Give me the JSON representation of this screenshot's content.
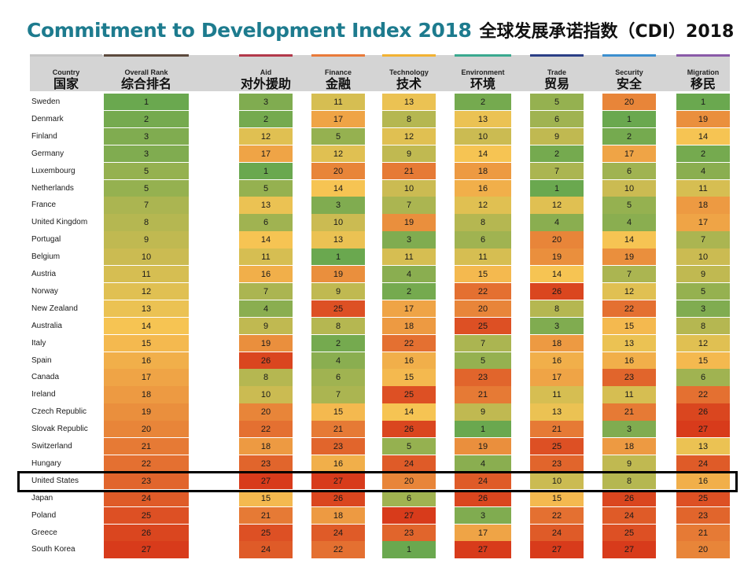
{
  "title": {
    "english": "Commitment to Development Index 2018",
    "chinese": "全球发展承诺指数（CDI）2018"
  },
  "chart_data": {
    "type": "table",
    "title": "Commitment to Development Index 2018",
    "highlighted_row": "United States",
    "color_scale": {
      "low": "#6aa84f",
      "mid": "#f6c453",
      "high": "#d83b1b",
      "min": 1,
      "max": 27
    },
    "columns": [
      {
        "key": "country",
        "en": "Country",
        "cn": "国家",
        "bar_color": "#c6c6c6"
      },
      {
        "key": "overall",
        "en": "Overall Rank",
        "cn": "综合排名",
        "bar_color": "#5c4a3d"
      },
      {
        "key": "aid",
        "en": "Aid",
        "cn": "对外援助",
        "bar_color": "#b2384a"
      },
      {
        "key": "finance",
        "en": "Finance",
        "cn": "金融",
        "bar_color": "#e97a3a"
      },
      {
        "key": "technology",
        "en": "Technology",
        "cn": "技术",
        "bar_color": "#f2b233"
      },
      {
        "key": "environment",
        "en": "Environment",
        "cn": "环境",
        "bar_color": "#3aa98f"
      },
      {
        "key": "trade",
        "en": "Trade",
        "cn": "贸易",
        "bar_color": "#2b3f86"
      },
      {
        "key": "security",
        "en": "Security",
        "cn": "安全",
        "bar_color": "#3c8fcf"
      },
      {
        "key": "migration",
        "en": "Migration",
        "cn": "移民",
        "bar_color": "#8a5aa8"
      }
    ],
    "rows": [
      {
        "country": "Sweden",
        "values": [
          1,
          3,
          11,
          13,
          2,
          5,
          20,
          1
        ]
      },
      {
        "country": "Denmark",
        "values": [
          2,
          2,
          17,
          8,
          13,
          6,
          1,
          19
        ]
      },
      {
        "country": "Finland",
        "values": [
          3,
          12,
          5,
          12,
          10,
          9,
          2,
          14
        ]
      },
      {
        "country": "Germany",
        "values": [
          3,
          17,
          12,
          9,
          14,
          2,
          17,
          2
        ]
      },
      {
        "country": "Luxembourg",
        "values": [
          5,
          1,
          20,
          21,
          18,
          7,
          6,
          4
        ]
      },
      {
        "country": "Netherlands",
        "values": [
          5,
          5,
          14,
          10,
          16,
          1,
          10,
          11
        ]
      },
      {
        "country": "France",
        "values": [
          7,
          13,
          3,
          7,
          12,
          12,
          5,
          18
        ]
      },
      {
        "country": "United Kingdom",
        "values": [
          8,
          6,
          10,
          19,
          8,
          4,
          4,
          17
        ]
      },
      {
        "country": "Portugal",
        "values": [
          9,
          14,
          13,
          3,
          6,
          20,
          14,
          7
        ]
      },
      {
        "country": "Belgium",
        "values": [
          10,
          11,
          1,
          11,
          11,
          19,
          19,
          10
        ]
      },
      {
        "country": "Austria",
        "values": [
          11,
          16,
          19,
          4,
          15,
          14,
          7,
          9
        ]
      },
      {
        "country": "Norway",
        "values": [
          12,
          7,
          9,
          2,
          22,
          26,
          12,
          5
        ]
      },
      {
        "country": "New Zealand",
        "values": [
          13,
          4,
          25,
          17,
          20,
          8,
          22,
          3
        ]
      },
      {
        "country": "Australia",
        "values": [
          14,
          9,
          8,
          18,
          25,
          3,
          15,
          8
        ]
      },
      {
        "country": "Italy",
        "values": [
          15,
          19,
          2,
          22,
          7,
          18,
          13,
          12
        ]
      },
      {
        "country": "Spain",
        "values": [
          16,
          26,
          4,
          16,
          5,
          16,
          16,
          15
        ]
      },
      {
        "country": "Canada",
        "values": [
          17,
          8,
          6,
          15,
          23,
          17,
          23,
          6
        ]
      },
      {
        "country": "Ireland",
        "values": [
          18,
          10,
          7,
          25,
          21,
          11,
          11,
          22
        ]
      },
      {
        "country": "Czech Republic",
        "values": [
          19,
          20,
          15,
          14,
          9,
          13,
          21,
          26
        ]
      },
      {
        "country": "Slovak Republic",
        "values": [
          20,
          22,
          21,
          26,
          1,
          21,
          3,
          27
        ]
      },
      {
        "country": "Switzerland",
        "values": [
          21,
          18,
          23,
          5,
          19,
          25,
          18,
          13
        ]
      },
      {
        "country": "Hungary",
        "values": [
          22,
          23,
          16,
          24,
          4,
          23,
          9,
          24
        ]
      },
      {
        "country": "United States",
        "values": [
          23,
          27,
          27,
          20,
          24,
          10,
          8,
          16
        ]
      },
      {
        "country": "Japan",
        "values": [
          24,
          15,
          26,
          6,
          26,
          15,
          26,
          25
        ]
      },
      {
        "country": "Poland",
        "values": [
          25,
          21,
          18,
          27,
          3,
          22,
          24,
          23
        ]
      },
      {
        "country": "Greece",
        "values": [
          26,
          25,
          24,
          23,
          17,
          24,
          25,
          21
        ]
      },
      {
        "country": "South Korea",
        "values": [
          27,
          24,
          22,
          1,
          27,
          27,
          27,
          20
        ]
      }
    ]
  }
}
